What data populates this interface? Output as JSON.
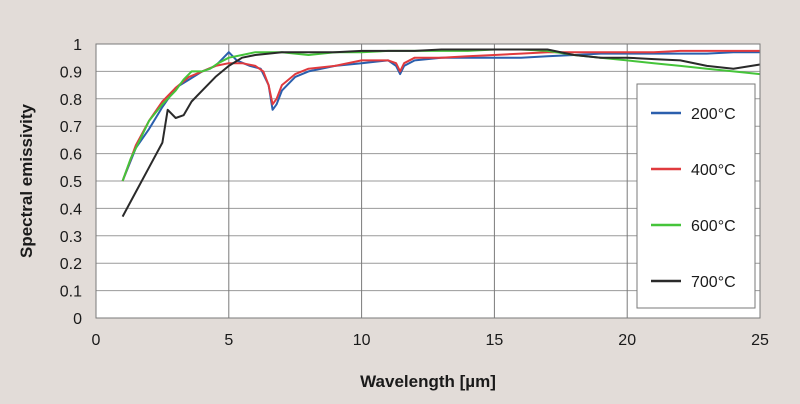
{
  "chart_data": {
    "type": "line",
    "title": "",
    "xlabel": "Wavelength [µm]",
    "ylabel": "Spectral emissivity",
    "xlim": [
      0,
      25
    ],
    "ylim": [
      0,
      1
    ],
    "x_ticks": [
      0,
      5,
      10,
      15,
      20,
      25
    ],
    "y_ticks": [
      0,
      0.1,
      0.2,
      0.3,
      0.4,
      0.5,
      0.6,
      0.7,
      0.8,
      0.9,
      1
    ],
    "x_tick_labels": [
      "0",
      "5",
      "10",
      "15",
      "20",
      "25"
    ],
    "y_tick_labels": [
      "0",
      "0.1",
      "0.2",
      "0.3",
      "0.4",
      "0.5",
      "0.6",
      "0.7",
      "0.8",
      "0.9",
      "1"
    ],
    "grid": true,
    "legend_position": "right",
    "series": [
      {
        "name": "200°C",
        "color": "#2b5fad",
        "points": [
          [
            1,
            0.5
          ],
          [
            1.5,
            0.62
          ],
          [
            2,
            0.69
          ],
          [
            2.5,
            0.77
          ],
          [
            3,
            0.84
          ],
          [
            3.5,
            0.87
          ],
          [
            4,
            0.9
          ],
          [
            4.5,
            0.92
          ],
          [
            4.8,
            0.95
          ],
          [
            5,
            0.97
          ],
          [
            5.3,
            0.94
          ],
          [
            5.8,
            0.92
          ],
          [
            6.2,
            0.91
          ],
          [
            6.5,
            0.85
          ],
          [
            6.65,
            0.76
          ],
          [
            6.8,
            0.78
          ],
          [
            7,
            0.83
          ],
          [
            7.5,
            0.88
          ],
          [
            8,
            0.9
          ],
          [
            9,
            0.92
          ],
          [
            10,
            0.93
          ],
          [
            11,
            0.94
          ],
          [
            11.3,
            0.92
          ],
          [
            11.45,
            0.89
          ],
          [
            11.6,
            0.92
          ],
          [
            12,
            0.94
          ],
          [
            13,
            0.95
          ],
          [
            14,
            0.95
          ],
          [
            15,
            0.95
          ],
          [
            16,
            0.95
          ],
          [
            17,
            0.955
          ],
          [
            18,
            0.96
          ],
          [
            19,
            0.965
          ],
          [
            20,
            0.965
          ],
          [
            21,
            0.965
          ],
          [
            22,
            0.965
          ],
          [
            23,
            0.965
          ],
          [
            24,
            0.97
          ],
          [
            25,
            0.97
          ]
        ]
      },
      {
        "name": "400°C",
        "color": "#e03a3e",
        "points": [
          [
            1,
            0.5
          ],
          [
            1.5,
            0.63
          ],
          [
            2,
            0.72
          ],
          [
            2.5,
            0.79
          ],
          [
            3,
            0.84
          ],
          [
            3.5,
            0.88
          ],
          [
            4,
            0.9
          ],
          [
            4.5,
            0.92
          ],
          [
            5,
            0.93
          ],
          [
            5.5,
            0.93
          ],
          [
            6,
            0.92
          ],
          [
            6.3,
            0.9
          ],
          [
            6.5,
            0.85
          ],
          [
            6.65,
            0.78
          ],
          [
            6.8,
            0.8
          ],
          [
            7,
            0.85
          ],
          [
            7.5,
            0.89
          ],
          [
            8,
            0.91
          ],
          [
            9,
            0.92
          ],
          [
            10,
            0.94
          ],
          [
            11,
            0.94
          ],
          [
            11.3,
            0.93
          ],
          [
            11.45,
            0.9
          ],
          [
            11.6,
            0.93
          ],
          [
            12,
            0.95
          ],
          [
            13,
            0.95
          ],
          [
            14,
            0.955
          ],
          [
            15,
            0.96
          ],
          [
            16,
            0.965
          ],
          [
            17,
            0.97
          ],
          [
            18,
            0.97
          ],
          [
            19,
            0.97
          ],
          [
            20,
            0.97
          ],
          [
            21,
            0.97
          ],
          [
            22,
            0.975
          ],
          [
            23,
            0.975
          ],
          [
            24,
            0.975
          ],
          [
            25,
            0.975
          ]
        ]
      },
      {
        "name": "600°C",
        "color": "#45c43a",
        "points": [
          [
            1,
            0.5
          ],
          [
            1.3,
            0.58
          ],
          [
            1.7,
            0.66
          ],
          [
            2,
            0.72
          ],
          [
            2.5,
            0.78
          ],
          [
            3,
            0.83
          ],
          [
            3.3,
            0.87
          ],
          [
            3.6,
            0.9
          ],
          [
            4,
            0.9
          ],
          [
            4.3,
            0.91
          ],
          [
            4.6,
            0.93
          ],
          [
            5,
            0.95
          ],
          [
            5.5,
            0.96
          ],
          [
            6,
            0.97
          ],
          [
            7,
            0.97
          ],
          [
            8,
            0.96
          ],
          [
            9,
            0.97
          ],
          [
            10,
            0.97
          ],
          [
            11,
            0.975
          ],
          [
            12,
            0.975
          ],
          [
            13,
            0.975
          ],
          [
            14,
            0.975
          ],
          [
            15,
            0.98
          ],
          [
            16,
            0.98
          ],
          [
            17,
            0.975
          ],
          [
            18,
            0.96
          ],
          [
            19,
            0.95
          ],
          [
            20,
            0.94
          ],
          [
            21,
            0.93
          ],
          [
            22,
            0.92
          ],
          [
            23,
            0.91
          ],
          [
            24,
            0.9
          ],
          [
            25,
            0.89
          ]
        ]
      },
      {
        "name": "700°C",
        "color": "#2a2a2a",
        "points": [
          [
            1,
            0.37
          ],
          [
            1.5,
            0.46
          ],
          [
            2,
            0.55
          ],
          [
            2.5,
            0.64
          ],
          [
            2.7,
            0.76
          ],
          [
            3,
            0.73
          ],
          [
            3.3,
            0.74
          ],
          [
            3.6,
            0.79
          ],
          [
            4,
            0.83
          ],
          [
            4.5,
            0.88
          ],
          [
            5,
            0.92
          ],
          [
            5.5,
            0.95
          ],
          [
            6,
            0.96
          ],
          [
            7,
            0.97
          ],
          [
            8,
            0.97
          ],
          [
            9,
            0.97
          ],
          [
            10,
            0.975
          ],
          [
            11,
            0.975
          ],
          [
            12,
            0.975
          ],
          [
            13,
            0.98
          ],
          [
            14,
            0.98
          ],
          [
            15,
            0.98
          ],
          [
            16,
            0.98
          ],
          [
            17,
            0.98
          ],
          [
            18,
            0.96
          ],
          [
            19,
            0.95
          ],
          [
            20,
            0.95
          ],
          [
            21,
            0.945
          ],
          [
            22,
            0.94
          ],
          [
            23,
            0.92
          ],
          [
            24,
            0.91
          ],
          [
            25,
            0.925
          ]
        ]
      }
    ]
  }
}
